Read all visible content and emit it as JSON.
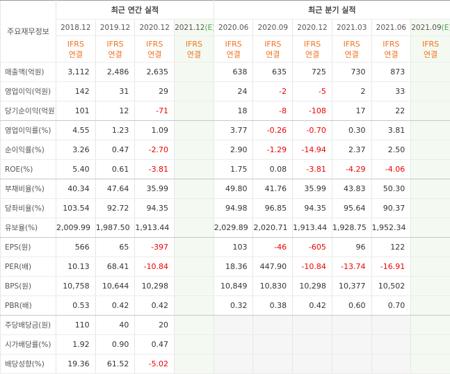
{
  "header": {
    "row_title": "주요재무정보",
    "annual_title": "최근 연간 실적",
    "quarter_title": "최근 분기 실적"
  },
  "annual_columns": [
    {
      "period": "2018.12",
      "standard": "IFRS",
      "consolidation": "연결"
    },
    {
      "period": "2019.12",
      "standard": "IFRS",
      "consolidation": "연결"
    },
    {
      "period": "2020.12",
      "standard": "IFRS",
      "consolidation": "연결"
    },
    {
      "period": "2021.12",
      "estimate": "(E)",
      "standard": "IFRS",
      "consolidation": "연결"
    }
  ],
  "quarter_columns": [
    {
      "period": "2020.06",
      "standard": "IFRS",
      "consolidation": "연결"
    },
    {
      "period": "2020.09",
      "standard": "IFRS",
      "consolidation": "연결"
    },
    {
      "period": "2020.12",
      "standard": "IFRS",
      "consolidation": "연결"
    },
    {
      "period": "2021.03",
      "standard": "IFRS",
      "consolidation": "연결"
    },
    {
      "period": "2021.06",
      "standard": "IFRS",
      "consolidation": "연결"
    },
    {
      "period": "2021.09",
      "estimate": "(E)",
      "standard": "IFRS",
      "consolidation": "연결"
    }
  ],
  "row_groups": [
    [
      {
        "label": "매출액(억원)",
        "annual": [
          "3,112",
          "2,486",
          "2,635",
          null
        ],
        "quarter": [
          "638",
          "635",
          "725",
          "730",
          "873",
          null
        ]
      },
      {
        "label": "영업이익(억원)",
        "annual": [
          "142",
          "31",
          "29",
          null
        ],
        "quarter": [
          "24",
          "-2",
          "-5",
          "2",
          "33",
          null
        ]
      },
      {
        "label": "당기순이익(억원)",
        "annual": [
          "101",
          "12",
          "-71",
          null
        ],
        "quarter": [
          "18",
          "-8",
          "-108",
          "17",
          "22",
          null
        ]
      }
    ],
    [
      {
        "label": "영업이익률(%)",
        "annual": [
          "4.55",
          "1.23",
          "1.09",
          null
        ],
        "quarter": [
          "3.77",
          "-0.26",
          "-0.70",
          "0.30",
          "3.81",
          null
        ]
      },
      {
        "label": "순이익률(%)",
        "annual": [
          "3.26",
          "0.47",
          "-2.70",
          null
        ],
        "quarter": [
          "2.90",
          "-1.29",
          "-14.94",
          "2.37",
          "2.50",
          null
        ]
      },
      {
        "label": "ROE(%)",
        "annual": [
          "5.40",
          "0.61",
          "-3.81",
          null
        ],
        "quarter": [
          "1.75",
          "0.08",
          "-3.81",
          "-4.29",
          "-4.06",
          null
        ]
      }
    ],
    [
      {
        "label": "부채비율(%)",
        "annual": [
          "40.34",
          "47.64",
          "35.99",
          null
        ],
        "quarter": [
          "49.80",
          "41.76",
          "35.99",
          "43.83",
          "50.30",
          null
        ]
      },
      {
        "label": "당좌비율(%)",
        "annual": [
          "103.54",
          "92.72",
          "94.35",
          null
        ],
        "quarter": [
          "94.98",
          "96.85",
          "94.35",
          "95.64",
          "90.37",
          null
        ]
      },
      {
        "label": "유보율(%)",
        "annual": [
          "2,009.99",
          "1,987.50",
          "1,913.44",
          null
        ],
        "quarter": [
          "2,029.89",
          "2,020.71",
          "1,913.44",
          "1,928.75",
          "1,952.34",
          null
        ]
      }
    ],
    [
      {
        "label": "EPS(원)",
        "annual": [
          "566",
          "65",
          "-397",
          null
        ],
        "quarter": [
          "103",
          "-46",
          "-605",
          "96",
          "122",
          null
        ]
      },
      {
        "label": "PER(배)",
        "annual": [
          "10.13",
          "68.41",
          "-10.84",
          null
        ],
        "quarter": [
          "18.36",
          "447.90",
          "-10.84",
          "-13.74",
          "-16.91",
          null
        ]
      },
      {
        "label": "BPS(원)",
        "annual": [
          "10,758",
          "10,644",
          "10,298",
          null
        ],
        "quarter": [
          "10,849",
          "10,830",
          "10,298",
          "10,377",
          "10,502",
          null
        ]
      },
      {
        "label": "PBR(배)",
        "annual": [
          "0.53",
          "0.42",
          "0.42",
          null
        ],
        "quarter": [
          "0.32",
          "0.38",
          "0.42",
          "0.60",
          "0.70",
          null
        ]
      }
    ],
    [
      {
        "label": "주당배당금(원)",
        "annual": [
          "110",
          "40",
          "20",
          null
        ],
        "quarter": [
          null,
          null,
          null,
          null,
          null,
          null
        ]
      },
      {
        "label": "시가배당률(%)",
        "annual": [
          "1.92",
          "0.90",
          "0.47",
          null
        ],
        "quarter": [
          null,
          null,
          null,
          null,
          null,
          null
        ]
      },
      {
        "label": "배당성향(%)",
        "annual": [
          "19.36",
          "61.52",
          "-5.02",
          null
        ],
        "quarter": [
          null,
          null,
          null,
          null,
          null,
          null
        ]
      }
    ]
  ]
}
